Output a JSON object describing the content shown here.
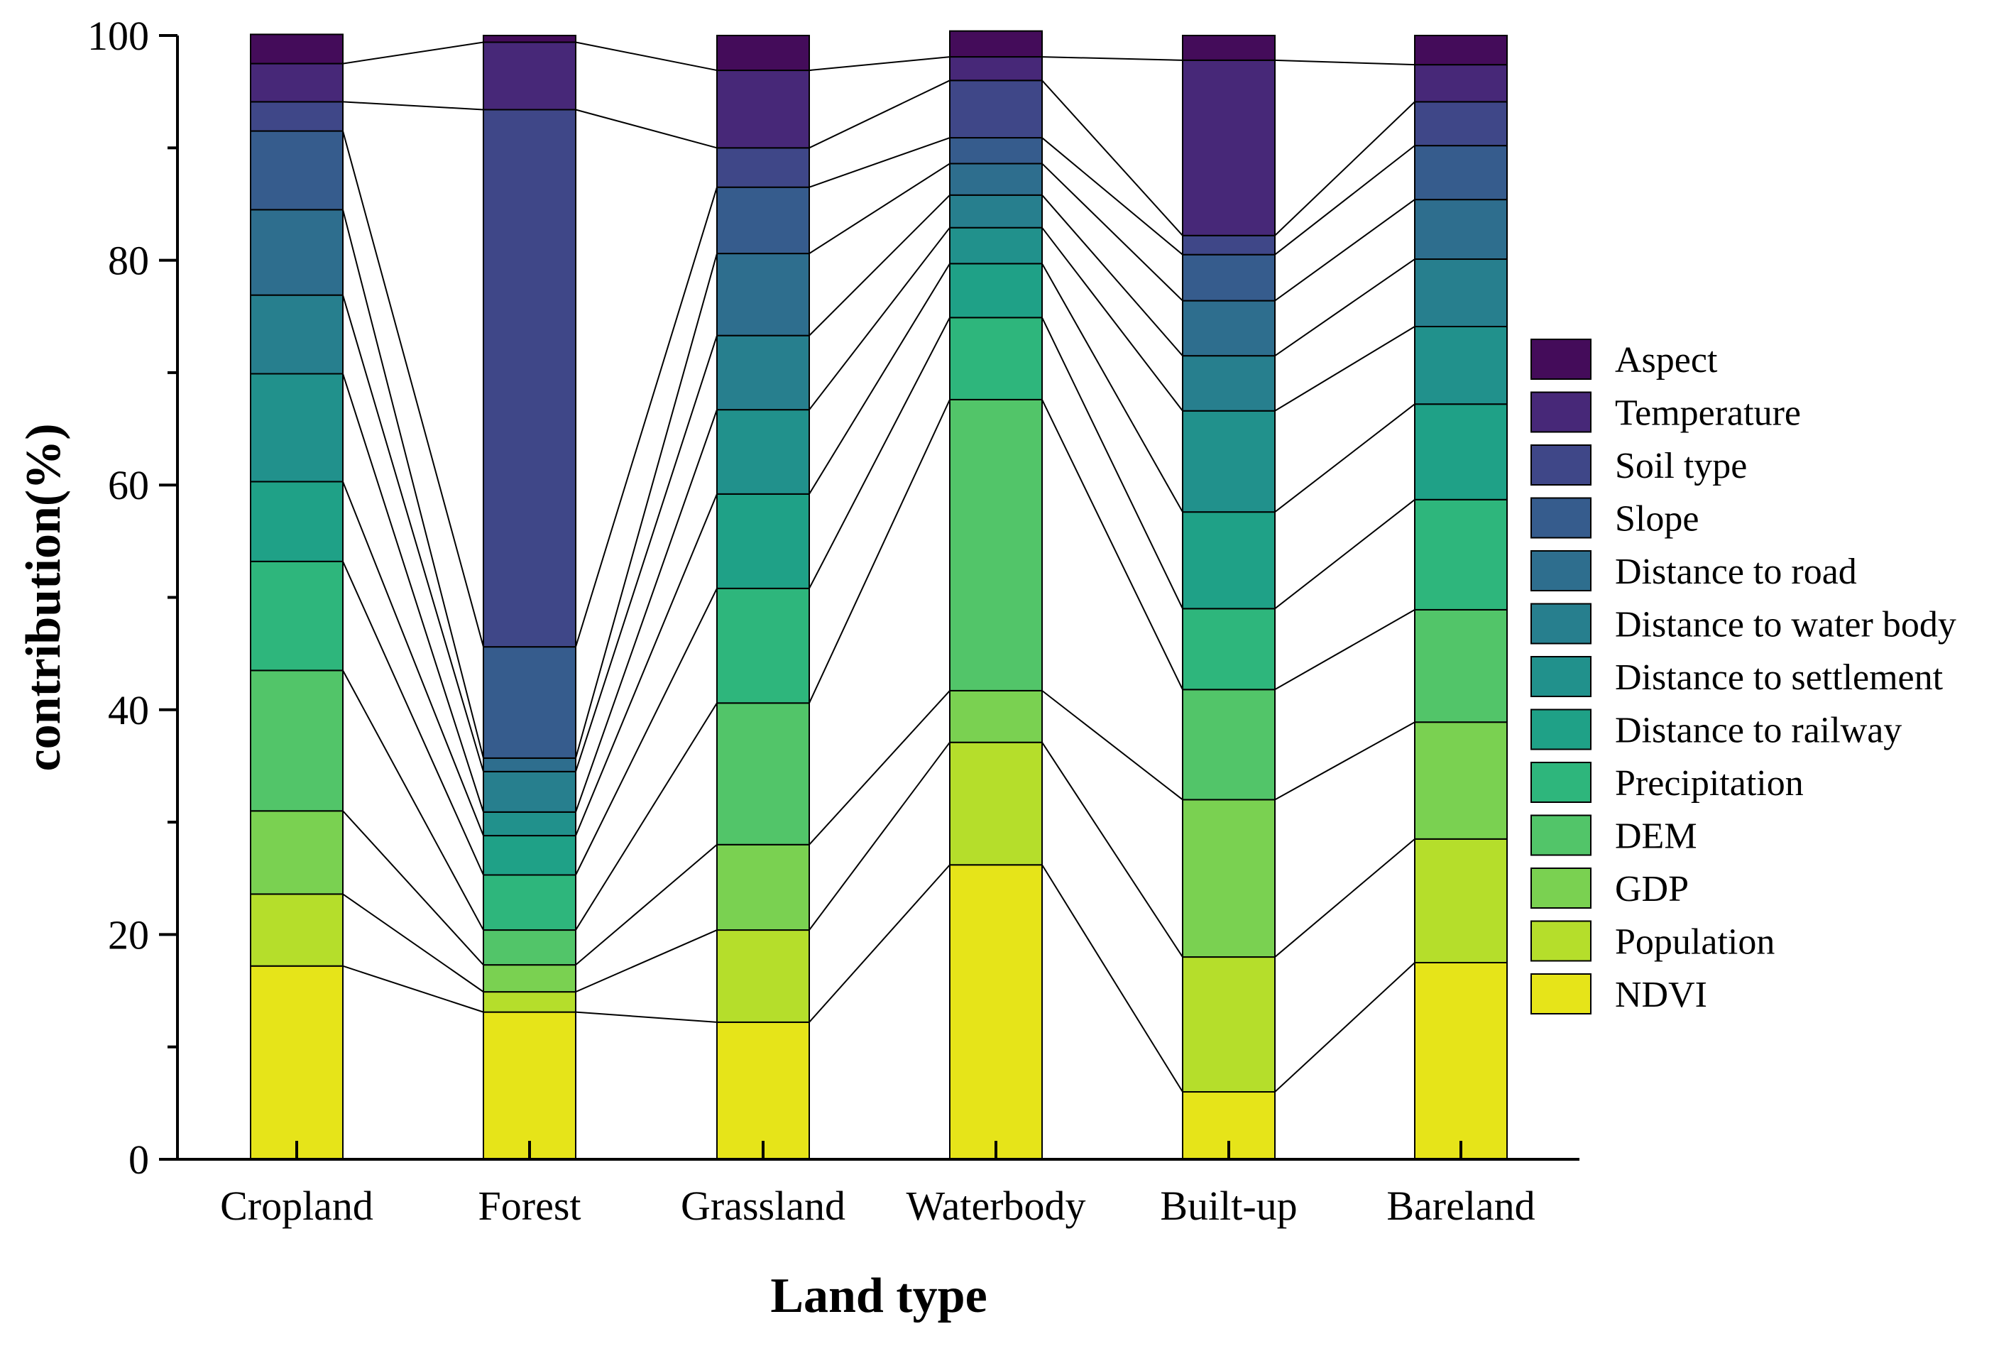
{
  "chart_data": {
    "type": "bar",
    "stacked": true,
    "title": "",
    "xlabel": "Land type",
    "ylabel": "contribution(%)",
    "ylim": [
      0,
      100
    ],
    "yticks": [
      0,
      20,
      40,
      60,
      80,
      100
    ],
    "yticks_labels": [
      "0",
      "20",
      "40",
      "60",
      "80",
      "100"
    ],
    "categories": [
      "Cropland",
      "Forest",
      "Grassland",
      "Waterbody",
      "Built-up",
      "Bareland"
    ],
    "legend_position": "right",
    "connector_lines": true,
    "series": [
      {
        "name": "NDVI",
        "color": "#e6e419",
        "values": [
          17.2,
          13.1,
          12.2,
          26.2,
          6.0,
          17.5
        ]
      },
      {
        "name": "Population",
        "color": "#b5de2b",
        "values": [
          6.4,
          1.8,
          8.2,
          10.9,
          12.0,
          11.0
        ]
      },
      {
        "name": "GDP",
        "color": "#7ad151",
        "values": [
          7.4,
          2.4,
          7.6,
          4.6,
          14.0,
          10.4
        ]
      },
      {
        "name": "DEM",
        "color": "#52c569",
        "values": [
          12.5,
          3.1,
          12.6,
          25.9,
          9.8,
          10.0
        ]
      },
      {
        "name": "Precipitation",
        "color": "#2eb67c",
        "values": [
          9.7,
          4.9,
          10.2,
          7.3,
          7.2,
          9.8
        ]
      },
      {
        "name": "Distance to railway",
        "color": "#1fa187",
        "values": [
          7.1,
          3.5,
          8.4,
          4.8,
          8.6,
          8.5
        ]
      },
      {
        "name": "Distance to settlement",
        "color": "#21918c",
        "values": [
          9.6,
          2.1,
          7.5,
          3.2,
          9.0,
          6.9
        ]
      },
      {
        "name": "Distance to water body",
        "color": "#277f8e",
        "values": [
          7.0,
          3.6,
          6.6,
          2.9,
          4.9,
          6.0
        ]
      },
      {
        "name": "Distance to road",
        "color": "#2e6e8e",
        "values": [
          7.6,
          1.2,
          7.3,
          2.8,
          4.9,
          5.3
        ]
      },
      {
        "name": "Slope",
        "color": "#365c8d",
        "values": [
          7.0,
          9.9,
          5.9,
          2.3,
          4.1,
          4.8
        ]
      },
      {
        "name": "Soil type",
        "color": "#3f4788",
        "values": [
          2.6,
          47.8,
          3.5,
          5.1,
          1.7,
          3.9
        ]
      },
      {
        "name": "Temperature",
        "color": "#472878",
        "values": [
          3.4,
          6.0,
          6.9,
          2.1,
          15.6,
          3.3
        ]
      },
      {
        "name": "Aspect",
        "color": "#440c5a",
        "values": [
          2.6,
          0.6,
          3.1,
          2.3,
          2.2,
          2.6
        ]
      }
    ]
  }
}
